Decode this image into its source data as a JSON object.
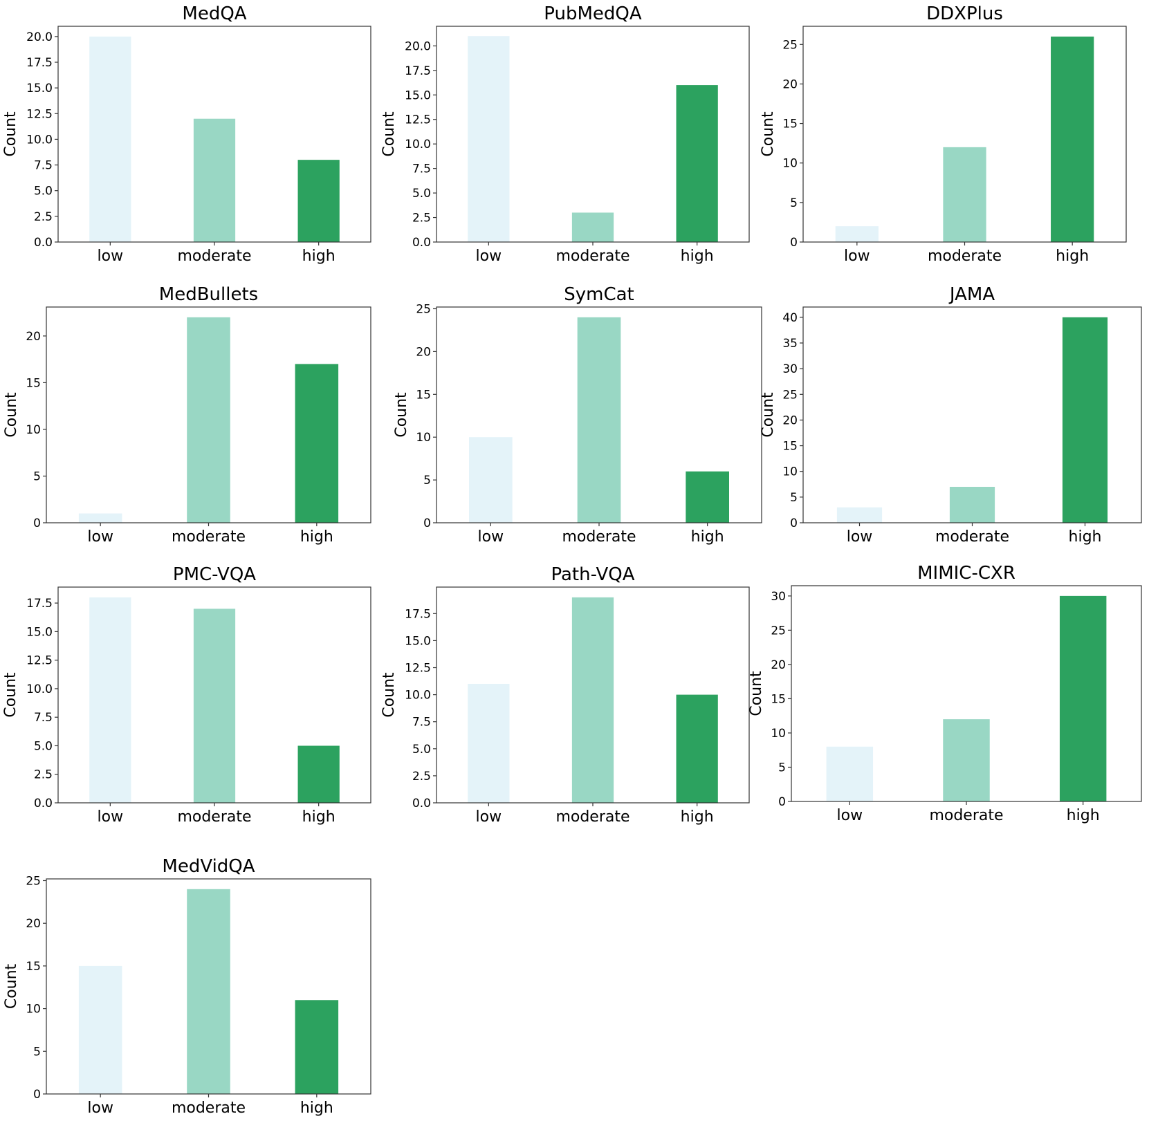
{
  "figure": {
    "colors": {
      "low": "#e4f3f9",
      "moderate": "#99d7c4",
      "high": "#2ca25f"
    }
  },
  "chart_data": [
    {
      "type": "bar",
      "title": "MedQA",
      "ylabel": "Count",
      "categories": [
        "low",
        "moderate",
        "high"
      ],
      "values": [
        20,
        12,
        8
      ],
      "ylim": [
        0,
        21
      ],
      "yticks": [
        "0.0",
        "2.5",
        "5.0",
        "7.5",
        "10.0",
        "12.5",
        "15.0",
        "17.5",
        "20.0"
      ]
    },
    {
      "type": "bar",
      "title": "PubMedQA",
      "ylabel": "Count",
      "categories": [
        "low",
        "moderate",
        "high"
      ],
      "values": [
        21,
        3,
        16
      ],
      "ylim": [
        0,
        22
      ],
      "yticks": [
        "0.0",
        "2.5",
        "5.0",
        "7.5",
        "10.0",
        "12.5",
        "15.0",
        "17.5",
        "20.0"
      ]
    },
    {
      "type": "bar",
      "title": "DDXPlus",
      "ylabel": "Count",
      "categories": [
        "low",
        "moderate",
        "high"
      ],
      "values": [
        2,
        12,
        26
      ],
      "ylim": [
        0,
        27.3
      ],
      "yticks": [
        "0",
        "5",
        "10",
        "15",
        "20",
        "25"
      ]
    },
    {
      "type": "bar",
      "title": "MedBullets",
      "ylabel": "Count",
      "categories": [
        "low",
        "moderate",
        "high"
      ],
      "values": [
        1,
        22,
        17
      ],
      "ylim": [
        0,
        23.1
      ],
      "yticks": [
        "0",
        "5",
        "10",
        "15",
        "20"
      ]
    },
    {
      "type": "bar",
      "title": "SymCat",
      "ylabel": "Count",
      "categories": [
        "low",
        "moderate",
        "high"
      ],
      "values": [
        10,
        24,
        6
      ],
      "ylim": [
        0,
        25.2
      ],
      "yticks": [
        "0",
        "5",
        "10",
        "15",
        "20",
        "25"
      ]
    },
    {
      "type": "bar",
      "title": "JAMA",
      "ylabel": "Count",
      "categories": [
        "low",
        "moderate",
        "high"
      ],
      "values": [
        3,
        7,
        40
      ],
      "ylim": [
        0,
        42
      ],
      "yticks": [
        "0",
        "5",
        "10",
        "15",
        "20",
        "25",
        "30",
        "35",
        "40"
      ]
    },
    {
      "type": "bar",
      "title": "PMC-VQA",
      "ylabel": "Count",
      "categories": [
        "low",
        "moderate",
        "high"
      ],
      "values": [
        18,
        17,
        5
      ],
      "ylim": [
        0,
        18.9
      ],
      "yticks": [
        "0.0",
        "2.5",
        "5.0",
        "7.5",
        "10.0",
        "12.5",
        "15.0",
        "17.5"
      ]
    },
    {
      "type": "bar",
      "title": "Path-VQA",
      "ylabel": "Count",
      "categories": [
        "low",
        "moderate",
        "high"
      ],
      "values": [
        11,
        19,
        10
      ],
      "ylim": [
        0,
        19.95
      ],
      "yticks": [
        "0.0",
        "2.5",
        "5.0",
        "7.5",
        "10.0",
        "12.5",
        "15.0",
        "17.5"
      ]
    },
    {
      "type": "bar",
      "title": "MIMIC-CXR",
      "ylabel": "Count",
      "categories": [
        "low",
        "moderate",
        "high"
      ],
      "values": [
        8,
        12,
        30
      ],
      "ylim": [
        0,
        31.5
      ],
      "yticks": [
        "0",
        "5",
        "10",
        "15",
        "20",
        "25",
        "30"
      ]
    },
    {
      "type": "bar",
      "title": "MedVidQA",
      "ylabel": "Count",
      "categories": [
        "low",
        "moderate",
        "high"
      ],
      "values": [
        15,
        24,
        11
      ],
      "ylim": [
        0,
        25.2
      ],
      "yticks": [
        "0",
        "5",
        "10",
        "15",
        "20",
        "25"
      ]
    }
  ]
}
